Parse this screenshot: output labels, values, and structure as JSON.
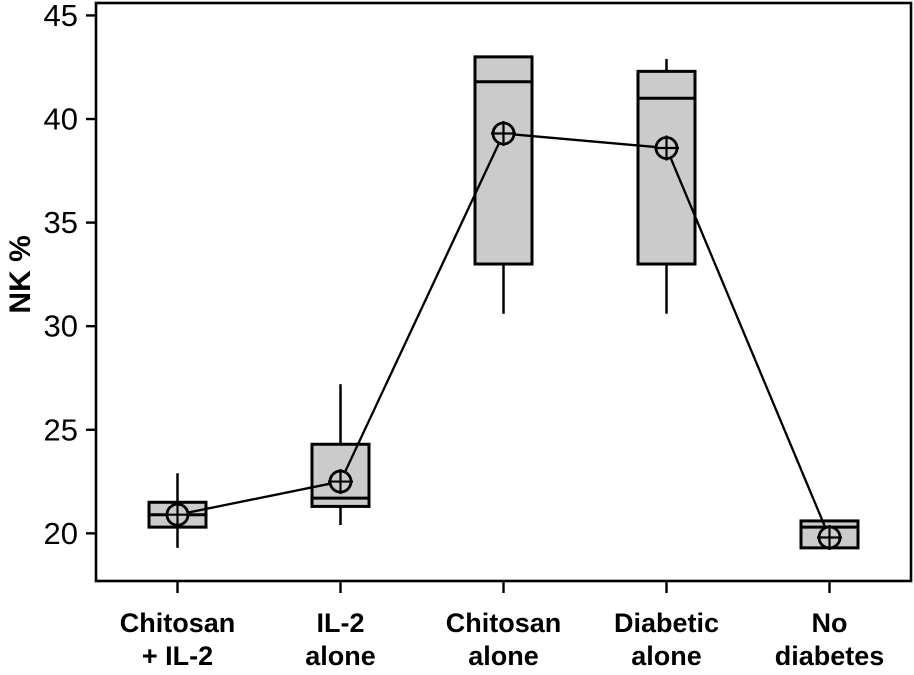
{
  "chart_data": {
    "type": "box",
    "title": "",
    "xlabel": "",
    "ylabel": "NK %",
    "ylim": [
      17.7,
      45.6
    ],
    "yticks": [
      20,
      25,
      30,
      35,
      40,
      45
    ],
    "grid": false,
    "legend": false,
    "mean_markers_connected": true,
    "categories": [
      {
        "label_lines": [
          "Chitosan",
          "+ IL-2"
        ]
      },
      {
        "label_lines": [
          "IL-2",
          "alone"
        ]
      },
      {
        "label_lines": [
          "Chitosan",
          "alone"
        ]
      },
      {
        "label_lines": [
          "Diabetic",
          "alone"
        ]
      },
      {
        "label_lines": [
          "No",
          "diabetes"
        ]
      }
    ],
    "series": [
      {
        "name": "Chitosan + IL-2",
        "whisker_low": 19.3,
        "q1": 20.3,
        "median": 20.9,
        "q3": 21.5,
        "whisker_high": 22.9,
        "mean": 20.9
      },
      {
        "name": "IL-2 alone",
        "whisker_low": 20.4,
        "q1": 21.3,
        "median": 21.7,
        "q3": 24.3,
        "whisker_high": 27.2,
        "mean": 22.5
      },
      {
        "name": "Chitosan alone",
        "whisker_low": 30.6,
        "q1": 33.0,
        "median": 41.8,
        "q3": 43.0,
        "whisker_high": 43.0,
        "mean": 39.3
      },
      {
        "name": "Diabetic alone",
        "whisker_low": 30.6,
        "q1": 33.0,
        "median": 41.0,
        "q3": 42.3,
        "whisker_high": 42.9,
        "mean": 38.6
      },
      {
        "name": "No diabetes",
        "whisker_low": 19.3,
        "q1": 19.3,
        "median": 20.3,
        "q3": 20.6,
        "whisker_high": 20.6,
        "mean": 19.8
      }
    ],
    "colors": {
      "box_fill": "#cbcbcb",
      "stroke": "#000000",
      "background": "#ffffff"
    }
  }
}
